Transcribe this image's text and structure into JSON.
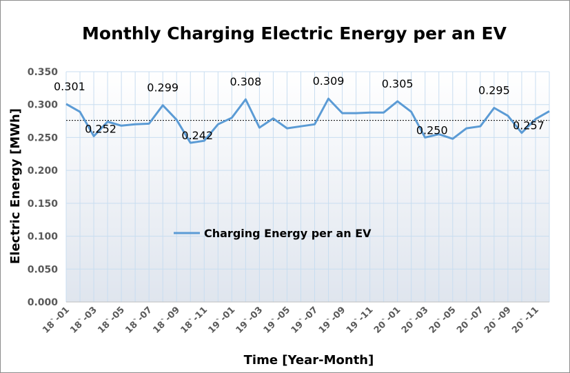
{
  "chart_data": {
    "type": "line",
    "title": "Monthly Charging Electric Energy per an EV",
    "xlabel": "Time [Year-Month]",
    "ylabel": "Electric Energy [MWh]",
    "ylim": [
      0,
      0.35
    ],
    "ytick_labels": [
      "0.000",
      "0.050",
      "0.100",
      "0.150",
      "0.200",
      "0.250",
      "0.300",
      "0.350"
    ],
    "categories": [
      "18`-01",
      "18`-02",
      "18`-03",
      "18`-04",
      "18`-05",
      "18`-06",
      "18`-07",
      "18`-08",
      "18`-09",
      "18`-10",
      "18`-11",
      "18`-12",
      "19`-01",
      "19`-02",
      "19`-03",
      "19`-04",
      "19`-05",
      "19`-06",
      "19`-07",
      "19`-08",
      "19`-09",
      "19`-10",
      "19`-11",
      "19`-12",
      "20`-01",
      "20`-02",
      "20`-03",
      "20`-04",
      "20`-05",
      "20`-06",
      "20`-07",
      "20`-08",
      "20`-09",
      "20`-10",
      "20`-11",
      "20`-12"
    ],
    "xtick_labels": [
      "18`-01",
      "18`-03",
      "18`-05",
      "18`-07",
      "18`-09",
      "18`-11",
      "19`-01",
      "19`-03",
      "19`-05",
      "19`-07",
      "19`-09",
      "19`-11",
      "20`-01",
      "20`-03",
      "20`-05",
      "20`-07",
      "20`-09",
      "20`-11"
    ],
    "series": [
      {
        "name": "Charging Energy per an EV",
        "color": "#5b9bd5",
        "values": [
          0.301,
          0.289,
          0.252,
          0.274,
          0.268,
          0.27,
          0.271,
          0.299,
          0.277,
          0.242,
          0.245,
          0.27,
          0.28,
          0.308,
          0.265,
          0.279,
          0.264,
          0.267,
          0.27,
          0.309,
          0.287,
          0.287,
          0.288,
          0.288,
          0.305,
          0.289,
          0.25,
          0.255,
          0.248,
          0.264,
          0.267,
          0.295,
          0.283,
          0.257,
          0.278,
          0.29
        ]
      }
    ],
    "average_line": {
      "value": 0.276,
      "color": "#000000",
      "style": "dotted"
    },
    "data_labels": [
      {
        "index": 0,
        "text": "0.301"
      },
      {
        "index": 2,
        "text": "0.252"
      },
      {
        "index": 7,
        "text": "0.299"
      },
      {
        "index": 9,
        "text": "0.242"
      },
      {
        "index": 13,
        "text": "0.308"
      },
      {
        "index": 19,
        "text": "0.309"
      },
      {
        "index": 24,
        "text": "0.305"
      },
      {
        "index": 26,
        "text": "0.250"
      },
      {
        "index": 31,
        "text": "0.295"
      },
      {
        "index": 33,
        "text": "0.257"
      }
    ],
    "grid": true,
    "legend_position": "center-left inside plot",
    "colors": {
      "plot_bg_top": "#ffffff",
      "plot_bg_bottom": "#dfe5ee",
      "gridline": "#c8ddf0"
    }
  }
}
